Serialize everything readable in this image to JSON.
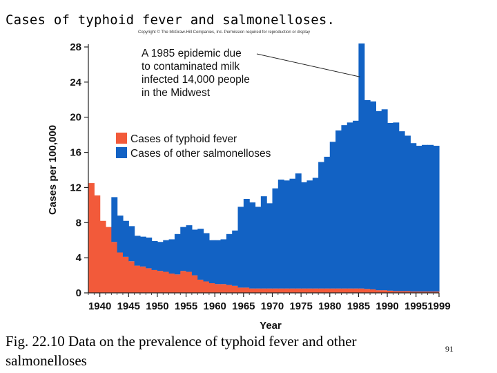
{
  "slide": {
    "title": "Cases of typhoid fever and salmonelloses.",
    "copyright": "Copyright © The McGraw-Hill Companies, Inc. Permission required for reproduction or display",
    "caption": "Fig. 22.10 Data on the prevalence of typhoid fever and other salmonelloses",
    "page_number": "91"
  },
  "colors": {
    "typhoid": "#f25a3a",
    "salmonelloses": "#1262c4",
    "axis": "#222222"
  },
  "chart_data": {
    "type": "area",
    "title": "",
    "xlabel": "Year",
    "ylabel": "Cases per 100,000",
    "xlim": [
      1938,
      1999
    ],
    "ylim": [
      0,
      28
    ],
    "x_ticks": [
      "1940",
      "1945",
      "1950",
      "1955",
      "1960",
      "1965",
      "1970",
      "1975",
      "1980",
      "1985",
      "1990",
      "1995",
      "1999"
    ],
    "y_ticks": [
      "0",
      "4",
      "8",
      "12",
      "16",
      "20",
      "24",
      "28"
    ],
    "x": [
      1938,
      1939,
      1940,
      1941,
      1942,
      1943,
      1944,
      1945,
      1946,
      1947,
      1948,
      1949,
      1950,
      1951,
      1952,
      1953,
      1954,
      1955,
      1956,
      1957,
      1958,
      1959,
      1960,
      1961,
      1962,
      1963,
      1964,
      1965,
      1966,
      1967,
      1968,
      1969,
      1970,
      1971,
      1972,
      1973,
      1974,
      1975,
      1976,
      1977,
      1978,
      1979,
      1980,
      1981,
      1982,
      1983,
      1984,
      1985,
      1986,
      1987,
      1988,
      1989,
      1990,
      1991,
      1992,
      1993,
      1994,
      1995,
      1996,
      1997,
      1998,
      1999
    ],
    "series": [
      {
        "name": "Cases of typhoid fever",
        "values": [
          12.5,
          11.1,
          8.2,
          7.5,
          5.8,
          4.6,
          4.1,
          3.6,
          3.1,
          3.0,
          2.8,
          2.6,
          2.5,
          2.4,
          2.2,
          2.1,
          2.5,
          2.4,
          2.0,
          1.5,
          1.3,
          1.1,
          1.0,
          1.0,
          0.9,
          0.8,
          0.6,
          0.6,
          0.5,
          0.5,
          0.5,
          0.5,
          0.5,
          0.5,
          0.5,
          0.5,
          0.5,
          0.5,
          0.5,
          0.5,
          0.5,
          0.5,
          0.5,
          0.5,
          0.5,
          0.5,
          0.5,
          0.5,
          0.45,
          0.4,
          0.3,
          0.3,
          0.25,
          0.2,
          0.2,
          0.2,
          0.15,
          0.15,
          0.15,
          0.15,
          0.15,
          0.15
        ]
      },
      {
        "name": "Cases of other salmonelloses",
        "values": [
          0,
          0,
          0,
          0,
          5.1,
          4.2,
          4.1,
          4.0,
          3.4,
          3.4,
          3.5,
          3.3,
          3.3,
          3.6,
          3.9,
          4.6,
          5.0,
          5.3,
          5.2,
          5.8,
          5.5,
          4.9,
          5.0,
          5.1,
          5.8,
          6.3,
          9.2,
          10.1,
          9.8,
          9.3,
          10.5,
          9.7,
          11.4,
          12.4,
          12.3,
          12.5,
          13.1,
          12.1,
          12.3,
          12.6,
          14.4,
          15.0,
          16.7,
          18.0,
          18.6,
          18.9,
          19.1,
          27.9,
          21.5,
          21.4,
          20.4,
          20.6,
          19.1,
          19.2,
          18.2,
          17.7,
          16.9,
          16.6,
          16.7,
          16.7,
          16.6,
          16.6
        ]
      }
    ],
    "annotation": {
      "lines": [
        "A 1985 epidemic due",
        "to contaminated milk",
        "infected 14,000 people",
        "in the Midwest"
      ],
      "target_x": 1985,
      "target_y": 27.9
    },
    "legend": [
      "Cases of typhoid fever",
      "Cases of other salmonelloses"
    ],
    "legend_position": "center-left"
  }
}
